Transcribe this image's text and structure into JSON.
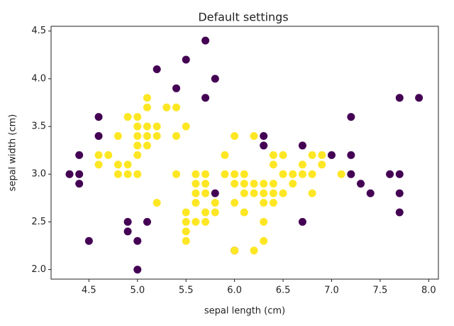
{
  "chart_data": {
    "type": "scatter",
    "title": "Default settings",
    "x_label": "sepal length (cm)",
    "y_label": "sepal width (cm)",
    "xlim": [
      4.11,
      8.1
    ],
    "ylim": [
      1.9,
      4.55
    ],
    "xticks": [
      4.5,
      {
        "value": 5,
        "label": "5.0"
      },
      5.5,
      {
        "value": 6,
        "label": "6.0"
      },
      6.5,
      {
        "value": 7,
        "label": "7.0"
      },
      7.5,
      {
        "value": 8,
        "label": "8.0"
      }
    ],
    "yticks": [
      {
        "value": 2,
        "label": "2.0"
      },
      2.5,
      {
        "value": 3,
        "label": "3.0"
      },
      3.5,
      {
        "value": 4,
        "label": "4.0"
      },
      4.5
    ],
    "series": [
      {
        "color": "#440154",
        "x": [
          4.3,
          4.4,
          4.4,
          4.4,
          4.5,
          4.6,
          4.6,
          4.9,
          4.9,
          5.0,
          5.0,
          5.1,
          5.2,
          5.4,
          5.5,
          5.7,
          5.7,
          5.8,
          5.8,
          6.0,
          6.3,
          6.3,
          6.7,
          6.7,
          7.0,
          7.2,
          7.2,
          7.2,
          7.3,
          7.4,
          7.6,
          7.7,
          7.7,
          7.7,
          7.7,
          7.9
        ],
        "y": [
          3.0,
          3.2,
          3.0,
          2.9,
          2.3,
          3.6,
          3.4,
          2.5,
          2.4,
          2.3,
          2.0,
          2.5,
          4.1,
          3.9,
          4.2,
          4.4,
          3.8,
          4.0,
          2.8,
          2.2,
          3.4,
          3.3,
          3.3,
          2.5,
          3.2,
          3.6,
          3.2,
          3.0,
          2.9,
          2.8,
          3.0,
          3.8,
          3.0,
          2.8,
          2.6,
          3.8
        ]
      },
      {
        "color": "#fde725",
        "x": [
          4.6,
          4.6,
          4.7,
          4.8,
          4.8,
          4.8,
          4.9,
          4.9,
          4.9,
          5.0,
          5.0,
          5.0,
          5.0,
          5.0,
          5.0,
          5.1,
          5.1,
          5.1,
          5.1,
          5.1,
          5.2,
          5.2,
          5.2,
          5.3,
          5.4,
          5.4,
          5.4,
          5.5,
          5.5,
          5.5,
          5.5,
          5.5,
          5.6,
          5.6,
          5.6,
          5.6,
          5.6,
          5.7,
          5.7,
          5.7,
          5.7,
          5.7,
          5.8,
          5.8,
          5.9,
          5.9,
          6.0,
          6.0,
          6.0,
          6.0,
          6.0,
          6.1,
          6.1,
          6.1,
          6.1,
          6.2,
          6.2,
          6.2,
          6.2,
          6.3,
          6.3,
          6.3,
          6.3,
          6.3,
          6.4,
          6.4,
          6.4,
          6.4,
          6.4,
          6.5,
          6.5,
          6.5,
          6.6,
          6.6,
          6.7,
          6.7,
          6.8,
          6.8,
          6.8,
          6.9,
          6.9,
          7.1
        ],
        "y": [
          3.2,
          3.1,
          3.2,
          3.4,
          3.1,
          3.0,
          3.6,
          3.1,
          3.0,
          3.6,
          3.5,
          3.4,
          3.3,
          3.2,
          3.0,
          3.8,
          3.7,
          3.5,
          3.4,
          3.3,
          3.5,
          3.4,
          2.7,
          3.7,
          3.7,
          3.4,
          3.0,
          3.5,
          2.6,
          2.5,
          2.4,
          2.3,
          3.0,
          2.9,
          2.8,
          2.7,
          2.5,
          3.0,
          2.9,
          2.8,
          2.6,
          2.5,
          2.7,
          2.6,
          3.2,
          3.0,
          3.4,
          3.0,
          2.9,
          2.7,
          2.2,
          3.0,
          2.9,
          2.8,
          2.6,
          3.4,
          2.9,
          2.8,
          2.2,
          2.9,
          2.8,
          2.7,
          2.5,
          2.3,
          3.2,
          3.1,
          2.9,
          2.8,
          2.7,
          3.2,
          3.0,
          2.8,
          3.0,
          2.9,
          3.1,
          3.0,
          3.2,
          3.0,
          2.8,
          3.2,
          3.1,
          3.0
        ]
      }
    ]
  }
}
